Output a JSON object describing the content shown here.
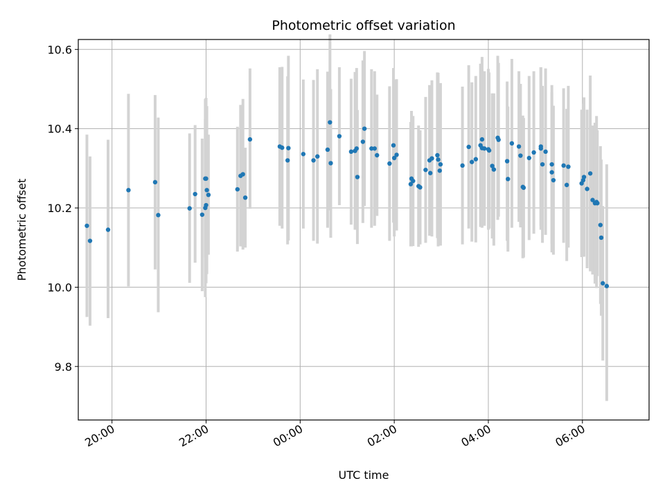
{
  "chart_data": {
    "type": "scatter",
    "title": "Photometric offset variation",
    "xlabel": "UTC time",
    "ylabel": "Photometric offset",
    "xlim": [
      "19:17",
      "07:25"
    ],
    "ylim": [
      9.665,
      10.625
    ],
    "grid": true,
    "x_ticks": [
      "20:00",
      "22:00",
      "00:00",
      "02:00",
      "04:00",
      "06:00"
    ],
    "y_ticks": [
      "9.8",
      "10.0",
      "10.2",
      "10.4",
      "10.6"
    ],
    "colors": {
      "point": "#1f77b4",
      "errorbar": "#d3d3d3",
      "grid": "#b0b0b0"
    },
    "series": [
      {
        "x": [
          "19:28",
          "19:32",
          "19:55",
          "20:21",
          "20:55",
          "20:59",
          "21:39",
          "21:46",
          "21:55",
          "21:59",
          "21:59",
          "22:00",
          "22:00",
          "22:01",
          "22:03",
          "22:40",
          "22:44",
          "22:47",
          "22:50",
          "22:56",
          "23:34",
          "23:37",
          "23:44",
          "23:45",
          "00:04",
          "00:17",
          "00:22",
          "00:35",
          "00:38",
          "00:39",
          "00:50",
          "01:05",
          "01:10",
          "01:12",
          "01:13",
          "01:20",
          "01:22",
          "01:31",
          "01:35",
          "01:38",
          "01:54",
          "01:59",
          "02:00",
          "02:03",
          "02:21",
          "02:22",
          "02:24",
          "02:31",
          "02:33",
          "02:40",
          "02:45",
          "02:46",
          "02:48",
          "02:55",
          "02:56",
          "02:58",
          "02:59",
          "03:27",
          "03:35",
          "03:39",
          "03:44",
          "03:50",
          "03:52",
          "03:52",
          "03:55",
          "04:00",
          "04:01",
          "04:05",
          "04:07",
          "04:12",
          "04:13",
          "04:24",
          "04:25",
          "04:30",
          "04:39",
          "04:41",
          "04:44",
          "04:45",
          "04:52",
          "04:58",
          "05:07",
          "05:07",
          "05:09",
          "05:13",
          "05:21",
          "05:21",
          "05:23",
          "05:36",
          "05:40",
          "05:42",
          "05:59",
          "06:01",
          "06:02",
          "06:06",
          "06:10",
          "06:13",
          "06:16",
          "06:18",
          "06:19",
          "06:23",
          "06:24",
          "06:26",
          "06:31"
        ],
        "y": [
          10.155,
          10.117,
          10.145,
          10.245,
          10.265,
          10.182,
          10.199,
          10.235,
          10.183,
          10.274,
          10.2,
          10.207,
          10.274,
          10.245,
          10.233,
          10.247,
          10.281,
          10.285,
          10.226,
          10.373,
          10.355,
          10.352,
          10.32,
          10.351,
          10.336,
          10.32,
          10.33,
          10.347,
          10.416,
          10.313,
          10.381,
          10.342,
          10.344,
          10.35,
          10.278,
          10.367,
          10.4,
          10.35,
          10.35,
          10.333,
          10.312,
          10.358,
          10.326,
          10.334,
          10.26,
          10.274,
          10.268,
          10.255,
          10.252,
          10.296,
          10.32,
          10.288,
          10.325,
          10.333,
          10.322,
          10.294,
          10.31,
          10.307,
          10.354,
          10.316,
          10.323,
          10.358,
          10.351,
          10.373,
          10.35,
          10.348,
          10.345,
          10.306,
          10.297,
          10.377,
          10.372,
          10.318,
          10.273,
          10.363,
          10.355,
          10.332,
          10.253,
          10.251,
          10.326,
          10.34,
          10.35,
          10.355,
          10.31,
          10.342,
          10.29,
          10.31,
          10.27,
          10.307,
          10.258,
          10.304,
          10.262,
          10.27,
          10.278,
          10.248,
          10.287,
          10.22,
          10.212,
          10.215,
          10.212,
          10.157,
          10.125,
          10.01,
          10.003
        ],
        "y_low": [
          9.925,
          9.903,
          9.922,
          10.002,
          10.045,
          9.937,
          10.011,
          10.062,
          9.99,
          10.075,
          9.975,
          10.01,
          10.07,
          10.033,
          10.082,
          10.09,
          10.103,
          10.095,
          10.1,
          10.198,
          10.155,
          10.148,
          10.108,
          10.118,
          10.148,
          10.117,
          10.11,
          10.15,
          10.194,
          10.125,
          10.207,
          10.158,
          10.145,
          10.147,
          10.109,
          10.162,
          10.205,
          10.15,
          10.155,
          10.18,
          10.117,
          10.163,
          10.128,
          10.143,
          10.103,
          10.103,
          10.104,
          10.102,
          10.108,
          10.112,
          10.13,
          10.133,
          10.128,
          10.124,
          10.103,
          10.113,
          10.105,
          10.108,
          10.148,
          10.115,
          10.113,
          10.152,
          10.15,
          10.165,
          10.155,
          10.145,
          10.148,
          10.123,
          10.105,
          10.17,
          10.178,
          10.117,
          10.09,
          10.15,
          10.165,
          10.151,
          10.073,
          10.075,
          10.119,
          10.135,
          10.145,
          10.155,
          10.112,
          10.132,
          10.088,
          10.11,
          10.082,
          10.112,
          10.066,
          10.1,
          10.076,
          10.077,
          10.077,
          10.048,
          10.04,
          10.032,
          10.009,
          9.998,
          10.028,
          9.958,
          9.928,
          9.815,
          9.713
        ],
        "y_high": [
          10.385,
          10.33,
          10.372,
          10.488,
          10.485,
          10.428,
          10.388,
          10.409,
          10.375,
          10.475,
          10.424,
          10.403,
          10.478,
          10.457,
          10.385,
          10.405,
          10.46,
          10.475,
          10.352,
          10.552,
          10.555,
          10.556,
          10.532,
          10.584,
          10.524,
          10.523,
          10.55,
          10.544,
          10.638,
          10.5,
          10.555,
          10.526,
          10.543,
          10.553,
          10.447,
          10.572,
          10.596,
          10.55,
          10.545,
          10.486,
          10.507,
          10.553,
          10.524,
          10.525,
          10.417,
          10.445,
          10.432,
          10.408,
          10.396,
          10.48,
          10.51,
          10.443,
          10.522,
          10.542,
          10.541,
          10.475,
          10.515,
          10.506,
          10.56,
          10.517,
          10.533,
          10.564,
          10.552,
          10.581,
          10.545,
          10.551,
          10.542,
          10.489,
          10.489,
          10.584,
          10.566,
          10.519,
          10.456,
          10.576,
          10.545,
          10.513,
          10.433,
          10.427,
          10.533,
          10.545,
          10.555,
          10.555,
          10.508,
          10.552,
          10.492,
          10.51,
          10.458,
          10.502,
          10.45,
          10.508,
          10.448,
          10.463,
          10.479,
          10.448,
          10.534,
          10.408,
          10.415,
          10.432,
          10.396,
          10.356,
          10.322,
          10.205,
          10.31
        ]
      }
    ]
  }
}
